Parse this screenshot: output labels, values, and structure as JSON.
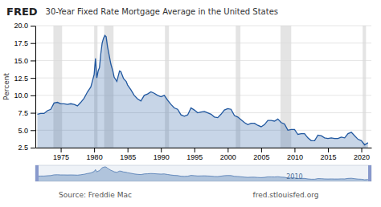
{
  "chart_data": {
    "type": "area",
    "title": "30-Year Fixed Rate Mortgage Average in the United States",
    "ylabel": "Percent",
    "color": "#2158a0",
    "grid": true,
    "xlim": [
      1971.2,
      2021.5
    ],
    "xticks": [
      1975,
      1980,
      1985,
      1990,
      1995,
      2000,
      2005,
      2010,
      2015,
      2020
    ],
    "ylim": [
      2.5,
      20.0
    ],
    "yticks": [
      2.5,
      {
        "value": 5.0,
        "label": "5.0"
      },
      7.5,
      {
        "value": 10.0,
        "label": "10.0"
      },
      12.5,
      {
        "value": 15.0,
        "label": "15.0"
      },
      17.5,
      {
        "value": 20.0,
        "label": "20.0"
      }
    ],
    "recessions": [
      [
        1973.9,
        1975.2
      ],
      [
        1980.0,
        1980.5
      ],
      [
        1981.5,
        1982.9
      ],
      [
        1990.6,
        1991.2
      ],
      [
        2001.2,
        2001.9
      ],
      [
        2007.9,
        2009.5
      ],
      [
        2020.2,
        2020.7
      ]
    ],
    "annotations": [
      {
        "text": "FRED"
      },
      {
        "text": "2010",
        "x": 2010
      },
      {
        "text": "Source: Freddie Mac"
      },
      {
        "text": "fred.stlouisfed.org"
      }
    ],
    "x": [
      1971.5,
      1972,
      1972.5,
      1973,
      1973.5,
      1974,
      1974.5,
      1975,
      1975.5,
      1976,
      1976.5,
      1977,
      1977.5,
      1978,
      1978.5,
      1979,
      1979.5,
      1980.0,
      1980.2,
      1980.4,
      1980.6,
      1980.8,
      1981.0,
      1981.2,
      1981.4,
      1981.6,
      1981.8,
      1982.0,
      1982.2,
      1982.5,
      1982.8,
      1983.0,
      1983.4,
      1983.8,
      1984.0,
      1984.4,
      1984.8,
      1985.0,
      1985.5,
      1986.0,
      1986.5,
      1987.0,
      1987.5,
      1988.0,
      1988.5,
      1989.0,
      1989.5,
      1990.0,
      1990.5,
      1991.0,
      1991.5,
      1992.0,
      1992.5,
      1993.0,
      1993.5,
      1994.0,
      1994.5,
      1995.0,
      1995.5,
      1996.0,
      1996.5,
      1997.0,
      1997.5,
      1998.0,
      1998.5,
      1999.0,
      1999.5,
      2000.0,
      2000.5,
      2001.0,
      2001.5,
      2002.0,
      2002.5,
      2003.0,
      2003.5,
      2004.0,
      2004.5,
      2005.0,
      2005.5,
      2006.0,
      2006.5,
      2007.0,
      2007.5,
      2008.0,
      2008.5,
      2009.0,
      2009.5,
      2010.0,
      2010.5,
      2011.0,
      2011.5,
      2012.0,
      2012.5,
      2013.0,
      2013.5,
      2014.0,
      2014.5,
      2015.0,
      2015.5,
      2016.0,
      2016.5,
      2017.0,
      2017.5,
      2018.0,
      2018.5,
      2019.0,
      2019.5,
      2020.0,
      2020.5,
      2021.0
    ],
    "values": [
      7.3,
      7.4,
      7.4,
      7.8,
      8.0,
      8.9,
      9.0,
      8.8,
      8.8,
      8.7,
      8.8,
      8.7,
      8.5,
      9.0,
      9.6,
      10.5,
      11.2,
      13.0,
      15.3,
      12.5,
      13.5,
      14.0,
      16.0,
      17.5,
      18.2,
      18.6,
      18.4,
      17.0,
      16.0,
      14.5,
      13.5,
      12.6,
      12.0,
      13.5,
      13.4,
      12.4,
      12.0,
      11.5,
      10.8,
      10.0,
      9.5,
      9.2,
      10.0,
      10.2,
      10.5,
      10.3,
      10.0,
      9.8,
      10.0,
      9.3,
      8.7,
      8.2,
      8.0,
      7.2,
      7.0,
      7.2,
      8.2,
      7.9,
      7.5,
      7.6,
      7.7,
      7.5,
      7.3,
      6.9,
      6.8,
      7.3,
      7.9,
      8.1,
      8.0,
      7.1,
      6.9,
      6.5,
      6.1,
      5.8,
      6.0,
      6.0,
      5.7,
      5.5,
      5.8,
      6.4,
      6.4,
      6.3,
      6.6,
      6.1,
      5.9,
      5.0,
      5.1,
      5.1,
      4.4,
      4.5,
      4.5,
      3.9,
      3.5,
      3.5,
      4.3,
      4.2,
      3.9,
      3.8,
      3.9,
      3.8,
      3.8,
      4.0,
      3.9,
      4.5,
      4.7,
      4.2,
      3.7,
      3.5,
      2.9,
      3.2
    ]
  }
}
